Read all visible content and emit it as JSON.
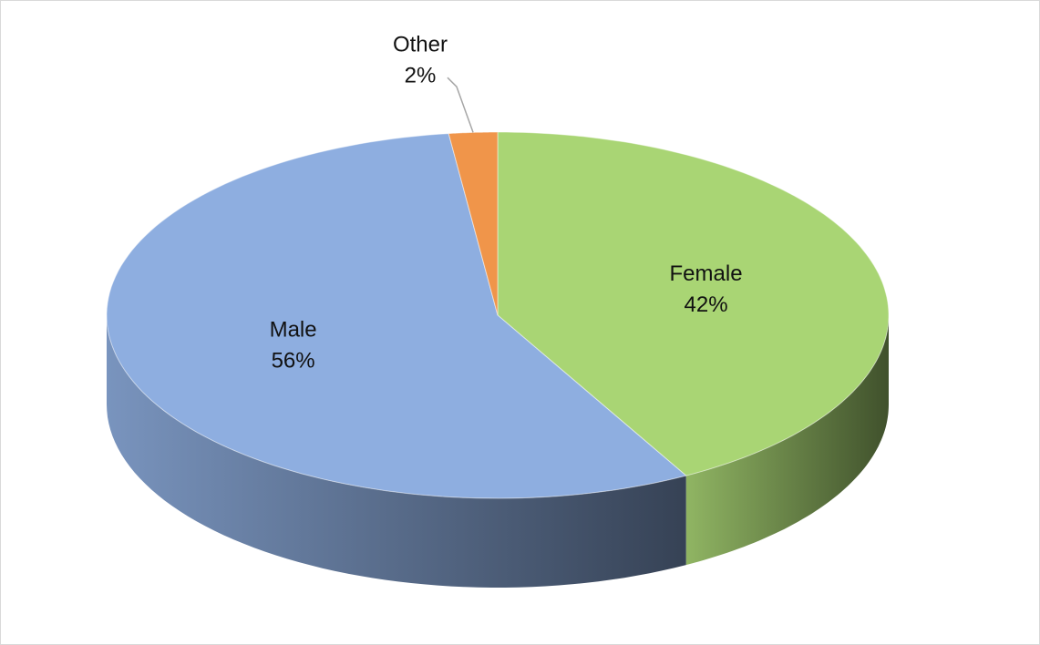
{
  "chart_data": {
    "type": "pie",
    "categories": [
      "Female",
      "Male",
      "Other"
    ],
    "values": [
      42,
      56,
      2
    ],
    "value_labels": [
      "42%",
      "56%",
      "2%"
    ],
    "colors": [
      "#a9d574",
      "#8eaee0",
      "#f0954a"
    ]
  }
}
